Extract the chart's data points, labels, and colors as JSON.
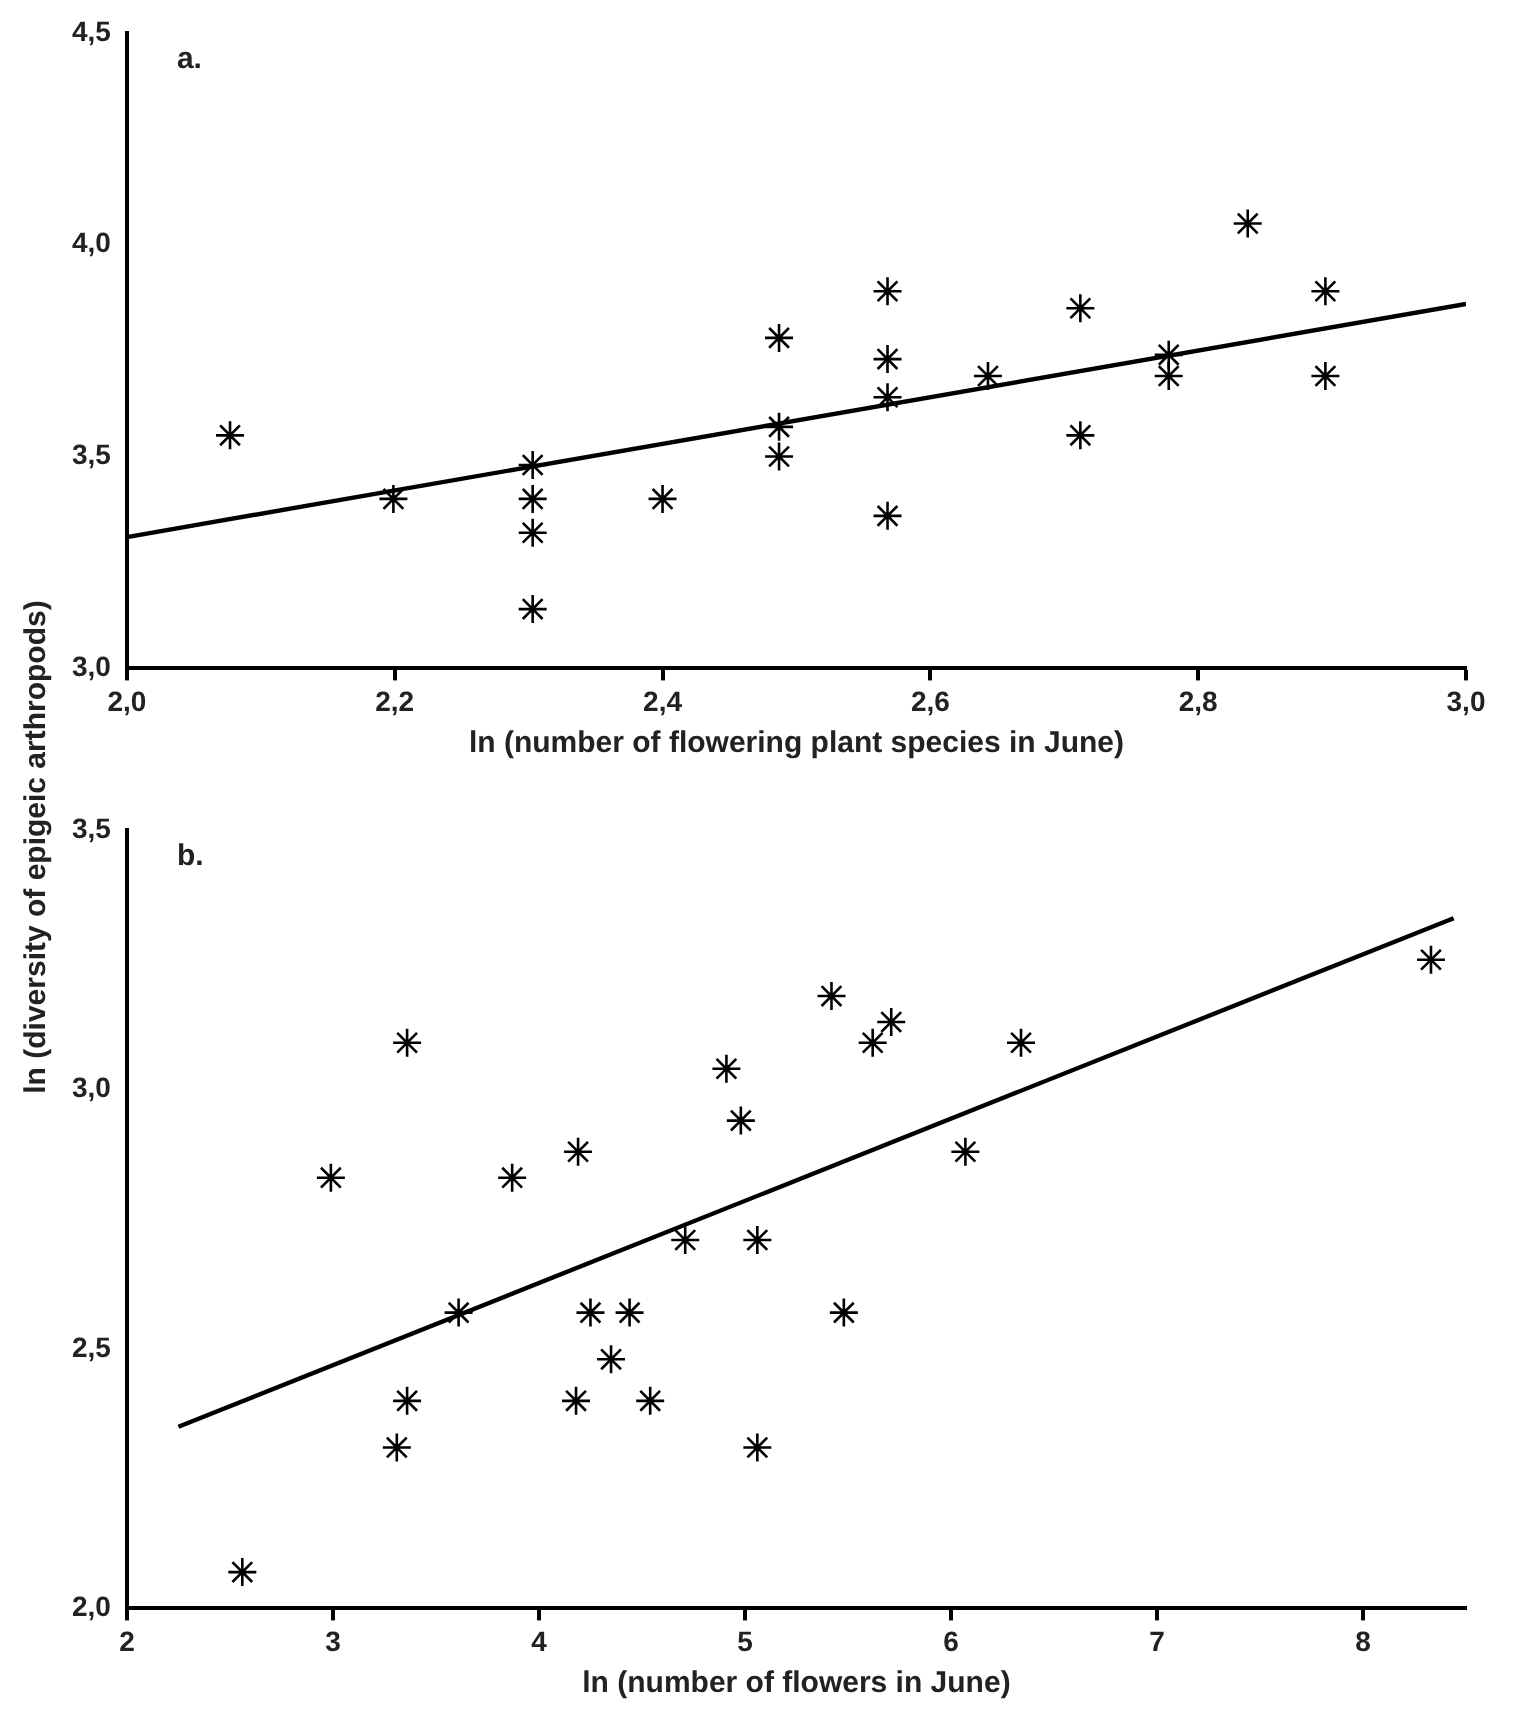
{
  "chart_data": [
    {
      "type": "scatter",
      "annotations": [
        "a."
      ],
      "xlabel": "ln (number of flowering plant species in June)",
      "ylabel": "ln (diversity of epigeic arthropods)",
      "marker": "cross",
      "grid": false,
      "legend": false,
      "xlim": [
        2.0,
        3.0
      ],
      "xticks": [
        {
          "value": 2.0,
          "label": "2,0"
        },
        {
          "value": 2.2,
          "label": "2,2"
        },
        {
          "value": 2.4,
          "label": "2,4"
        },
        {
          "value": 2.6,
          "label": "2,6"
        },
        {
          "value": 2.8,
          "label": "2,8"
        },
        {
          "value": 3.0,
          "label": "3,0"
        }
      ],
      "ylim": [
        3.0,
        4.5
      ],
      "yticks": [
        {
          "value": 3.0,
          "label": "3,0"
        },
        {
          "value": 3.5,
          "label": "3,5"
        },
        {
          "value": 4.0,
          "label": "4,0"
        },
        {
          "value": 4.5,
          "label": "4,5"
        }
      ],
      "series": [
        {
          "color": "#000000",
          "x": [
            2.077,
            2.199,
            2.303,
            2.303,
            2.303,
            2.303,
            2.4,
            2.487,
            2.487,
            2.487,
            2.568,
            2.568,
            2.568,
            2.568,
            2.643,
            2.712,
            2.712,
            2.778,
            2.778,
            2.837,
            2.895,
            2.895
          ],
          "values": [
            3.55,
            3.4,
            3.48,
            3.4,
            3.32,
            3.14,
            3.4,
            3.78,
            3.57,
            3.5,
            3.89,
            3.73,
            3.64,
            3.36,
            3.69,
            3.85,
            3.55,
            3.74,
            3.69,
            4.05,
            3.89,
            3.69
          ]
        },
        {
          "type": "line",
          "color": "#000000",
          "marker": "none",
          "x": [
            2.0,
            3.0
          ],
          "values": [
            3.31,
            3.86
          ]
        }
      ]
    },
    {
      "type": "scatter",
      "annotations": [
        "b."
      ],
      "xlabel": "ln (number of flowers in June)",
      "marker": "cross",
      "grid": false,
      "legend": false,
      "xlim": [
        2,
        8.5
      ],
      "xticks": [
        2,
        3,
        4,
        5,
        6,
        7,
        8
      ],
      "ylim": [
        2.0,
        3.5
      ],
      "yticks": [
        {
          "value": 2.0,
          "label": "2,0"
        },
        {
          "value": 2.5,
          "label": "2,5"
        },
        {
          "value": 3.0,
          "label": "3,0"
        },
        {
          "value": 3.5,
          "label": "3,5"
        }
      ],
      "series": [
        {
          "color": "#000000",
          "x": [
            2.56,
            2.99,
            3.36,
            3.36,
            3.31,
            3.61,
            3.87,
            4.19,
            4.18,
            4.25,
            4.35,
            4.44,
            4.54,
            4.71,
            4.91,
            4.98,
            5.06,
            5.06,
            5.42,
            5.48,
            5.62,
            5.71,
            6.07,
            6.34,
            8.33
          ],
          "values": [
            2.07,
            2.83,
            3.09,
            2.4,
            2.31,
            2.57,
            2.83,
            2.88,
            2.4,
            2.57,
            2.48,
            2.57,
            2.4,
            2.71,
            3.04,
            2.94,
            2.71,
            2.31,
            3.18,
            2.57,
            3.09,
            3.13,
            2.88,
            3.09,
            3.25
          ]
        },
        {
          "type": "line",
          "color": "#000000",
          "marker": "none",
          "x": [
            2.25,
            8.44
          ],
          "values": [
            2.35,
            3.33
          ]
        }
      ]
    }
  ]
}
